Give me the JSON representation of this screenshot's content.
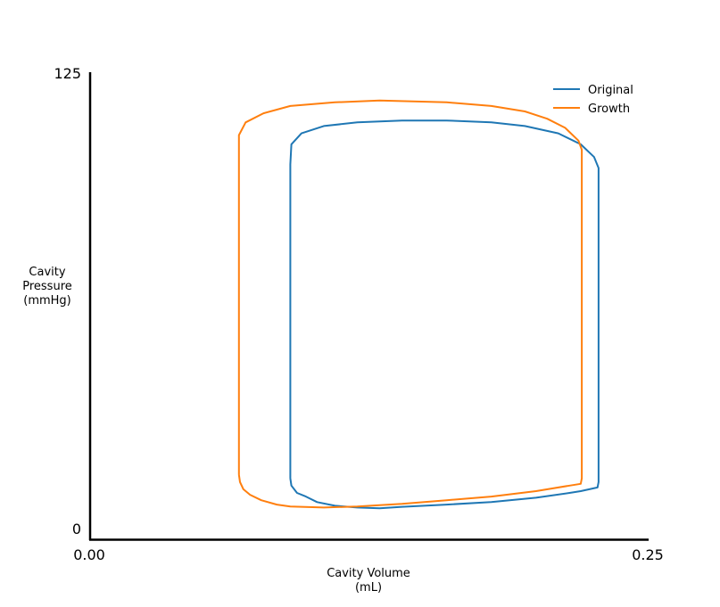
{
  "chart_data": {
    "type": "line",
    "title": "",
    "xlabel": [
      "Cavity Volume",
      "(mL)"
    ],
    "ylabel": [
      "Cavity",
      "Pressure",
      "(mmHg)"
    ],
    "xlim": [
      0.0,
      0.25
    ],
    "ylim": [
      0,
      125
    ],
    "x_tick_labels": [
      "0.00",
      "0.25"
    ],
    "y_tick_labels": [
      "0",
      "125"
    ],
    "grid": false,
    "legend_position": "top-right",
    "series": [
      {
        "name": "Original",
        "color": "#1f77b4",
        "points": [
          [
            0.09,
            14
          ],
          [
            0.0905,
            12
          ],
          [
            0.093,
            10
          ],
          [
            0.097,
            9
          ],
          [
            0.102,
            7.5
          ],
          [
            0.11,
            6.5
          ],
          [
            0.12,
            6
          ],
          [
            0.13,
            5.8
          ],
          [
            0.14,
            6.2
          ],
          [
            0.16,
            6.8
          ],
          [
            0.18,
            7.5
          ],
          [
            0.2,
            8.7
          ],
          [
            0.215,
            10
          ],
          [
            0.22,
            10.5
          ],
          [
            0.2275,
            11.5
          ],
          [
            0.228,
            13
          ],
          [
            0.228,
            40
          ],
          [
            0.228,
            80
          ],
          [
            0.228,
            99
          ],
          [
            0.226,
            102
          ],
          [
            0.22,
            105.5
          ],
          [
            0.21,
            108.5
          ],
          [
            0.195,
            110.5
          ],
          [
            0.18,
            111.5
          ],
          [
            0.16,
            112
          ],
          [
            0.14,
            112
          ],
          [
            0.12,
            111.5
          ],
          [
            0.105,
            110.5
          ],
          [
            0.095,
            108.5
          ],
          [
            0.0905,
            105.5
          ],
          [
            0.09,
            100
          ],
          [
            0.09,
            60
          ],
          [
            0.09,
            14
          ]
        ]
      },
      {
        "name": "Growth",
        "color": "#ff7f0e",
        "points": [
          [
            0.067,
            15
          ],
          [
            0.0675,
            13
          ],
          [
            0.069,
            11
          ],
          [
            0.072,
            9.5
          ],
          [
            0.077,
            8
          ],
          [
            0.084,
            6.8
          ],
          [
            0.09,
            6.3
          ],
          [
            0.105,
            6
          ],
          [
            0.12,
            6.3
          ],
          [
            0.14,
            7
          ],
          [
            0.16,
            8
          ],
          [
            0.18,
            9
          ],
          [
            0.2,
            10.5
          ],
          [
            0.215,
            12
          ],
          [
            0.22,
            12.5
          ],
          [
            0.2205,
            14
          ],
          [
            0.2205,
            40
          ],
          [
            0.2205,
            80
          ],
          [
            0.2205,
            104
          ],
          [
            0.219,
            106.5
          ],
          [
            0.213,
            110
          ],
          [
            0.205,
            112.5
          ],
          [
            0.195,
            114.5
          ],
          [
            0.18,
            116
          ],
          [
            0.16,
            117
          ],
          [
            0.13,
            117.5
          ],
          [
            0.11,
            117
          ],
          [
            0.09,
            116
          ],
          [
            0.078,
            114
          ],
          [
            0.07,
            111.5
          ],
          [
            0.067,
            108
          ],
          [
            0.067,
            60
          ],
          [
            0.067,
            15
          ]
        ]
      }
    ]
  }
}
